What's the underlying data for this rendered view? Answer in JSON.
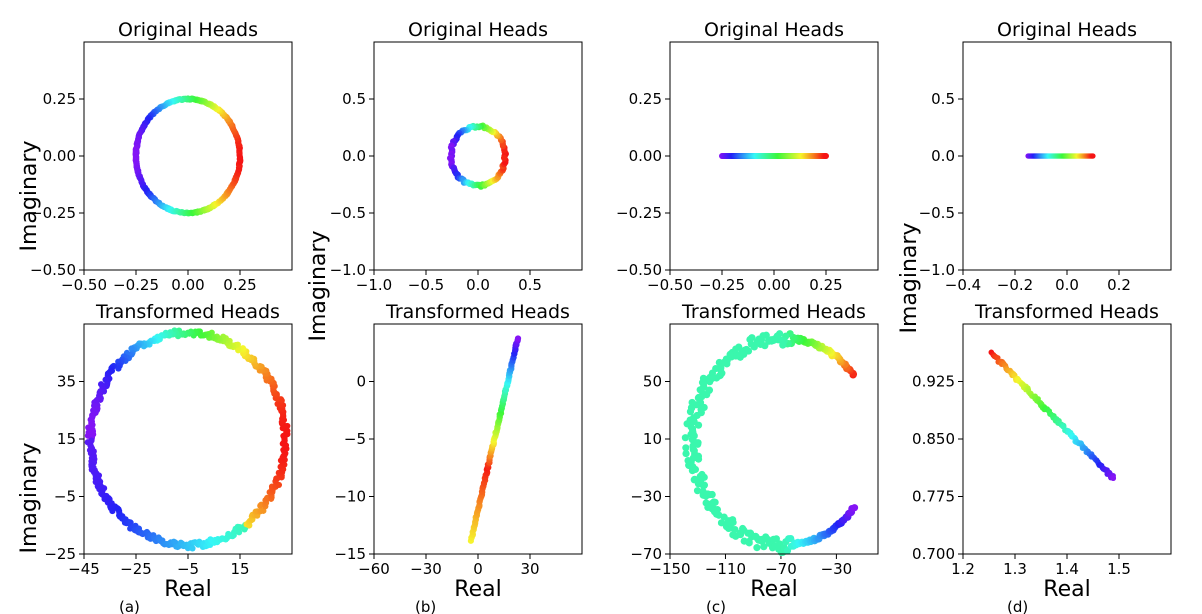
{
  "figure": {
    "ylabel": "Imaginary",
    "xlabel": "Real",
    "captions": [
      "(a)",
      "(b)",
      "(c)",
      "(d)"
    ]
  },
  "chart_data": [
    {
      "type": "scatter",
      "title": "Original Heads",
      "xlabel": "",
      "ylabel": "Imaginary",
      "xlim": [
        -0.5,
        0.5
      ],
      "ylim": [
        -0.5,
        0.5
      ],
      "xticks": [
        "-0.50",
        "-0.25",
        "0.00",
        "0.25"
      ],
      "yticks": [
        "-0.50",
        "-0.25",
        "0.00",
        "0.25"
      ],
      "shape": "circle",
      "center": [
        0,
        0
      ],
      "radii": [
        0.25,
        0.25
      ],
      "points": 360,
      "color_map": "rainbow (violet at left, red at right)"
    },
    {
      "type": "scatter",
      "title": "Original Heads",
      "xlabel": "",
      "ylabel": "Imaginary",
      "xlim": [
        -1.0,
        1.0
      ],
      "ylim": [
        -1.0,
        1.0
      ],
      "xticks": [
        "-1.0",
        "-0.5",
        "0.0",
        "0.5"
      ],
      "yticks": [
        "-1.0",
        "-0.5",
        "0.0",
        "0.5"
      ],
      "shape": "circle",
      "center": [
        0,
        0
      ],
      "radii": [
        0.26,
        0.26
      ],
      "points": 90,
      "color_map": "rainbow (violet at left, red at right)"
    },
    {
      "type": "scatter",
      "title": "Original Heads",
      "xlabel": "",
      "ylabel": "Imaginary",
      "xlim": [
        -0.5,
        0.5
      ],
      "ylim": [
        -0.5,
        0.5
      ],
      "xticks": [
        "-0.50",
        "-0.25",
        "0.00",
        "0.25"
      ],
      "yticks": [
        "-0.50",
        "-0.25",
        "0.00",
        "0.25"
      ],
      "shape": "line",
      "x_range": [
        -0.25,
        0.25
      ],
      "y": 0,
      "points": 200,
      "color_map": "rainbow (violet at left, red at right)"
    },
    {
      "type": "scatter",
      "title": "Original Heads",
      "xlabel": "",
      "ylabel": "Imaginary",
      "xlim": [
        -0.4,
        0.4
      ],
      "ylim": [
        -1.0,
        1.0
      ],
      "xticks": [
        "-0.4",
        "-0.2",
        "0.0",
        "0.2"
      ],
      "yticks": [
        "-1.0",
        "-0.5",
        "0.0",
        "0.5"
      ],
      "shape": "line",
      "x_range": [
        -0.15,
        0.1
      ],
      "y": 0,
      "points": 150,
      "color_map": "rainbow (violet at left, red at right)"
    },
    {
      "type": "scatter",
      "title": "Transformed Heads",
      "xlabel": "Real",
      "ylabel": "Imaginary",
      "xlim": [
        -45,
        35
      ],
      "ylim": [
        -25,
        55
      ],
      "xticks": [
        "-45",
        "-25",
        "-5",
        "15"
      ],
      "yticks": [
        "-25",
        "-5",
        "15",
        "35"
      ],
      "shape": "circle",
      "center": [
        -5,
        15
      ],
      "radii": [
        37.5,
        37
      ],
      "points": 420,
      "color_map": "rainbow (violet at bottom, red at right)"
    },
    {
      "type": "scatter",
      "title": "Transformed Heads",
      "xlabel": "Real",
      "ylabel": "Imaginary",
      "xlim": [
        -60,
        60
      ],
      "ylim": [
        -15,
        5
      ],
      "xticks": [
        "-60",
        "-30",
        "0",
        "30"
      ],
      "yticks": [
        "-15",
        "-10",
        "-5",
        "0"
      ],
      "shape": "line",
      "start": [
        -4,
        -13.8
      ],
      "end": [
        23,
        3.8
      ],
      "points": 120,
      "color_map": "rainbow (violet at top, yellow at bottom)"
    },
    {
      "type": "scatter",
      "title": "Transformed Heads",
      "xlabel": "Real",
      "ylabel": "Imaginary",
      "xlim": [
        -150,
        0
      ],
      "ylim": [
        -70,
        90
      ],
      "xticks": [
        "-150",
        "-110",
        "-70",
        "-30"
      ],
      "yticks": [
        "-70",
        "-30",
        "10",
        "50"
      ],
      "shape": "arc",
      "center": [
        -68,
        8
      ],
      "radii": [
        66,
        72
      ],
      "points": 300,
      "color_map": "rainbow (turquoise on left, violet bottom-right, red top-right)"
    },
    {
      "type": "scatter",
      "title": "Transformed Heads",
      "xlabel": "Real",
      "ylabel": "Imaginary",
      "xlim": [
        1.2,
        1.6
      ],
      "ylim": [
        0.7,
        1.0
      ],
      "xticks": [
        "1.2",
        "1.3",
        "1.4",
        "1.5"
      ],
      "yticks": [
        "0.700",
        "0.775",
        "0.850",
        "0.925"
      ],
      "shape": "line",
      "start": [
        1.255,
        0.962
      ],
      "end": [
        1.49,
        0.798
      ],
      "points": 150,
      "color_map": "rainbow (red at top-left, violet at bottom-right)"
    }
  ]
}
